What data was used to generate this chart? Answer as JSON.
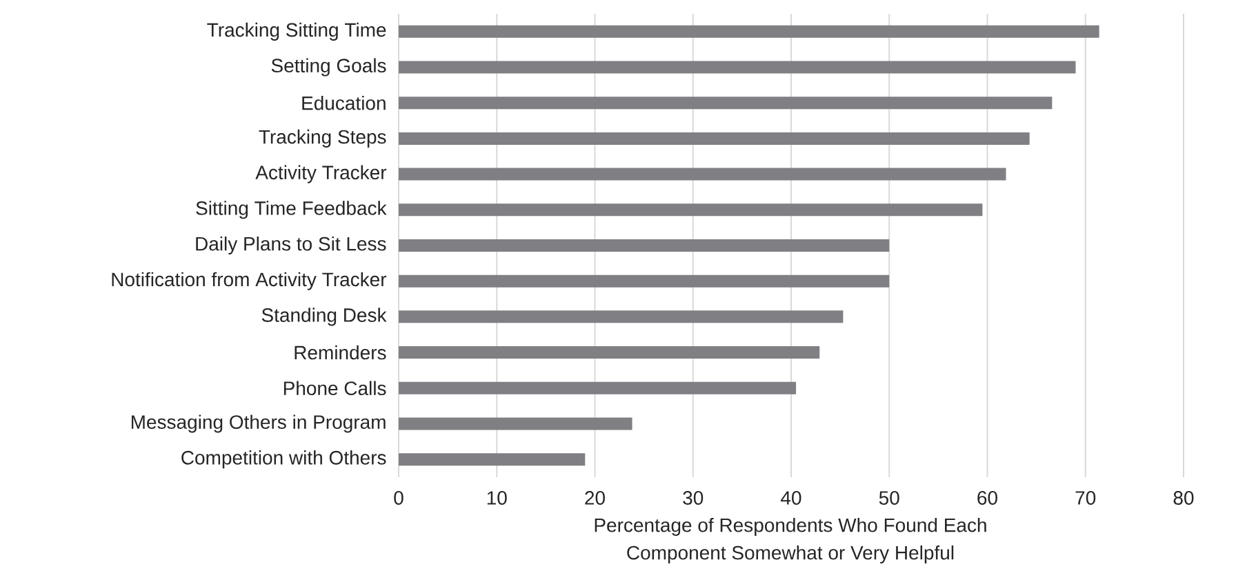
{
  "chart_data": {
    "type": "bar",
    "orientation": "horizontal",
    "xlabel": "Percentage of Respondents Who Found Each\nComponent Somewhat or Very Helpful",
    "categories": [
      "Tracking Sitting Time",
      "Setting Goals",
      "Education",
      "Tracking Steps",
      "Activity Tracker",
      "Sitting Time Feedback",
      "Daily Plans to Sit Less",
      "Notification from Activity Tracker",
      "Standing Desk",
      "Reminders",
      "Phone Calls",
      "Messaging Others in Program",
      "Competition with Others"
    ],
    "values": [
      71.4,
      69.0,
      66.6,
      64.3,
      61.9,
      59.5,
      50,
      50,
      45.3,
      42.9,
      40.5,
      23.8,
      19.0
    ],
    "color": "#7f7f84",
    "xlim": [
      0,
      80
    ],
    "xticks": [
      0,
      10,
      20,
      30,
      40,
      50,
      60,
      70,
      80
    ],
    "grid": "x"
  }
}
